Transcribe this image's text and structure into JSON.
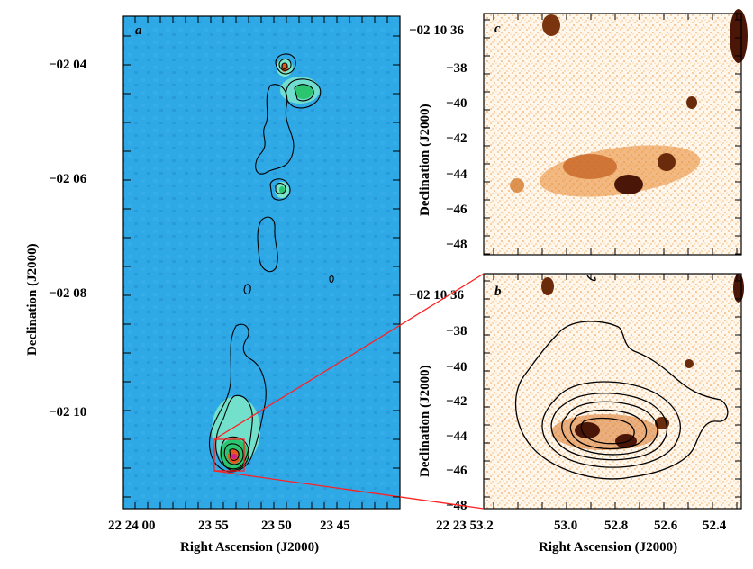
{
  "figure": {
    "colors": {
      "radio_bg": "#2fa8e6",
      "radio_bg_dark": "#1f86cf",
      "radio_emission": "#7be6c9",
      "radio_peak": "#38d27e",
      "optical_bg": "#fff6ec",
      "optical_emission": "#e07a1c",
      "optical_core": "#4a1607",
      "zoom_lines": "#ff2020",
      "contours": "#000000"
    },
    "panels": {
      "a": {
        "label": "a",
        "xlabel": "Right Ascension (J2000)",
        "ylabel": "Declination (J2000)",
        "xticks": [
          "22 24 00",
          "23 55",
          "23 50",
          "23 45"
        ],
        "yticks": [
          "−02 04",
          "−02 06",
          "−02 08",
          "−02 10"
        ]
      },
      "c": {
        "label": "c",
        "ylabel": "Declination (J2000)",
        "first_ytick": "−02 10 36",
        "yticks": [
          "−38",
          "−40",
          "−42",
          "−44",
          "−46",
          "−48"
        ]
      },
      "b": {
        "label": "b",
        "xlabel": "Right Ascension (J2000)",
        "ylabel": "Declination (J2000)",
        "first_ytick": "−02 10 36",
        "yticks": [
          "−38",
          "−40",
          "−42",
          "−44",
          "−46",
          "−48"
        ],
        "xticks": [
          "22 23 53.2",
          "53.0",
          "52.8",
          "52.6",
          "52.4"
        ]
      }
    }
  }
}
